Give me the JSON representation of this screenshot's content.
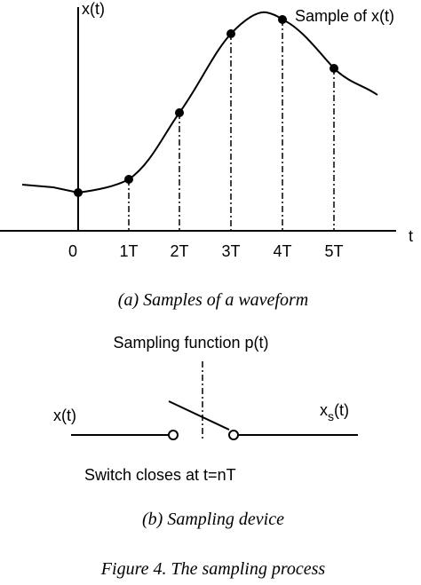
{
  "waveform": {
    "y_axis_label": "x(t)",
    "x_axis_label": "t",
    "annotation": "Sample of x(t)",
    "tick_labels": [
      "0",
      "1T",
      "2T",
      "3T",
      "4T",
      "5T"
    ],
    "caption": "(a) Samples of a waveform"
  },
  "device": {
    "function_label": "Sampling function p(t)",
    "input_label": "x(t)",
    "output_label": {
      "base": "x",
      "sub": "s",
      "tail": "(t)"
    },
    "switch_note": "Switch closes at t=nT",
    "caption": "(b) Sampling device"
  },
  "figure_caption": "Figure 4. The sampling process"
}
